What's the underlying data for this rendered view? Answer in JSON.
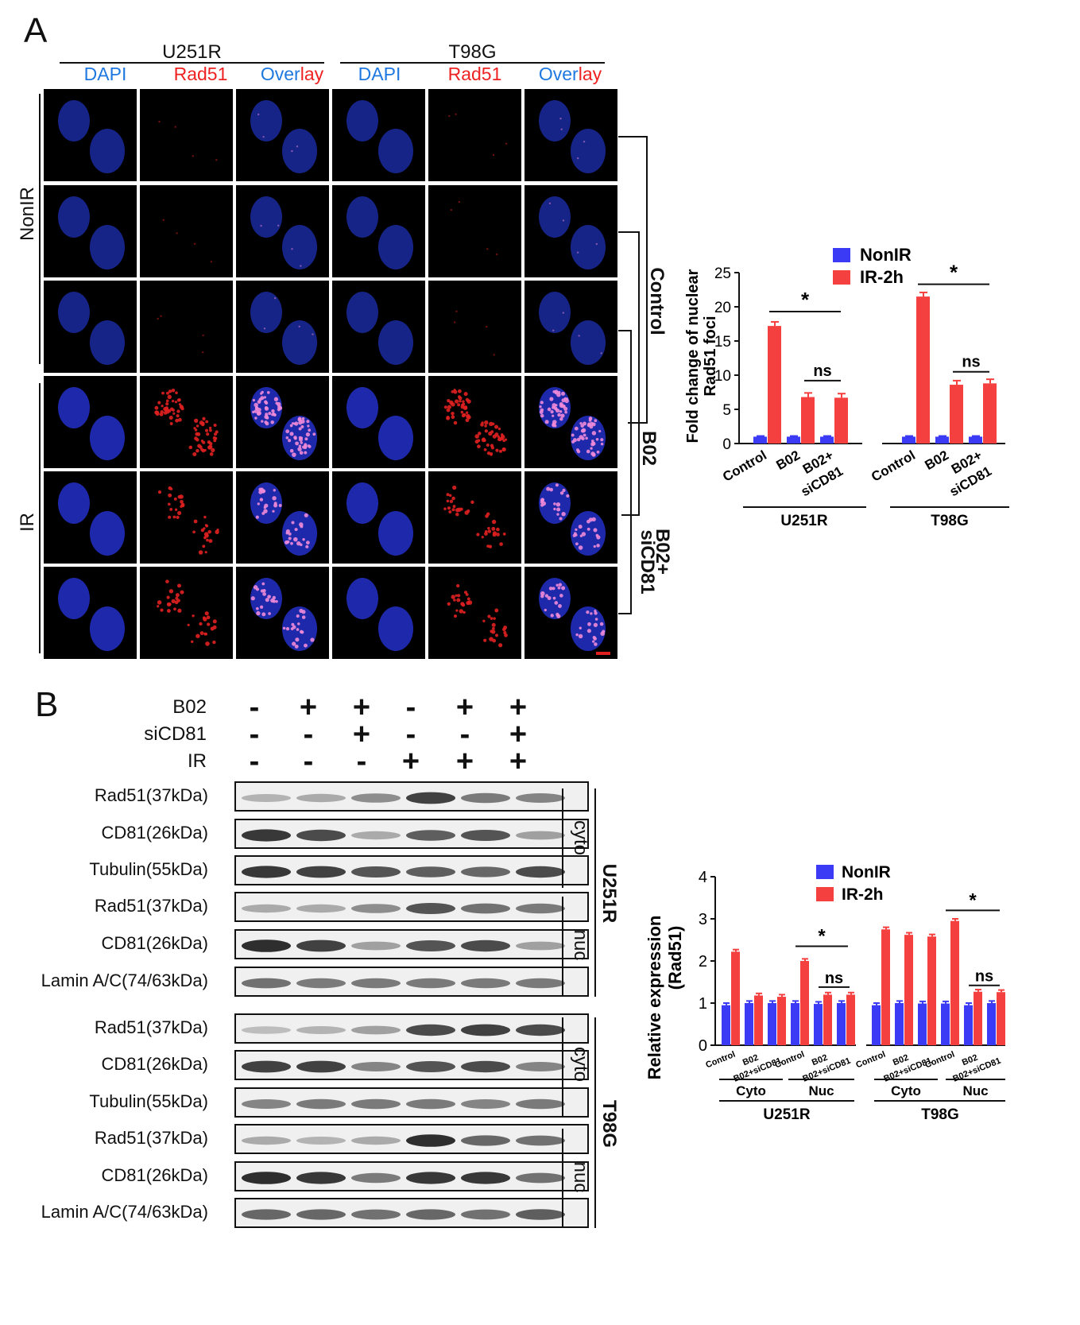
{
  "panel_a": {
    "letter": "A",
    "cell_lines": [
      "U251R",
      "T98G"
    ],
    "channels": [
      {
        "label": "DAPI",
        "color": "#1e78e0"
      },
      {
        "label": "Rad51",
        "color": "#ee2222"
      },
      {
        "label": "Over",
        "label2": "lay",
        "color": "#1e78e0",
        "color2": "#ee2222"
      },
      {
        "label": "DAPI",
        "color": "#1e78e0"
      },
      {
        "label": "Rad51",
        "color": "#ee2222"
      },
      {
        "label": "Over",
        "label2": "lay",
        "color": "#1e78e0",
        "color2": "#ee2222"
      }
    ],
    "row_groups": [
      "NonIR",
      "IR"
    ],
    "treatments": [
      "Control",
      "B02",
      "B02+\nsiCD81"
    ],
    "treatment_labels": {
      "control": "Control",
      "b02": "B02",
      "b02_si_line1": "B02+",
      "b02_si_line2": "siCD81"
    }
  },
  "chart_a": {
    "type": "bar",
    "ylabel_line1": "Fold change of nuclear",
    "ylabel_line2": "Rad51 foci",
    "ylim": [
      0,
      25
    ],
    "yticks": [
      "0",
      "5",
      "10",
      "15",
      "20",
      "25"
    ],
    "legend": [
      "NonIR",
      "IR-2h"
    ],
    "colors": [
      "#3b3bf5",
      "#f54040"
    ],
    "categories": [
      "Control",
      "B02",
      "B02+\nsiCD81",
      "Control",
      "B02",
      "B02+\nsiCD81"
    ],
    "groups": [
      "U251R",
      "T98G"
    ],
    "series": [
      {
        "name": "NonIR",
        "values": [
          1.0,
          1.0,
          1.0,
          1.0,
          1.0,
          1.0
        ]
      },
      {
        "name": "IR-2h",
        "values": [
          17.2,
          6.8,
          6.7,
          21.5,
          8.6,
          8.8
        ]
      }
    ],
    "significance": [
      "*",
      "ns",
      "*",
      "ns"
    ]
  },
  "panel_b": {
    "letter": "B",
    "conditions": [
      {
        "name": "B02",
        "signs": [
          "-",
          "+",
          "+",
          "-",
          "+",
          "+"
        ]
      },
      {
        "name": "siCD81",
        "signs": [
          "-",
          "-",
          "+",
          "-",
          "-",
          "+"
        ]
      },
      {
        "name": "IR",
        "signs": [
          "-",
          "-",
          "-",
          "+",
          "+",
          "+"
        ]
      }
    ],
    "blots": [
      "Rad51(37kDa)",
      "CD81(26kDa)",
      "Tubulin(55kDa)",
      "Rad51(37kDa)",
      "CD81(26kDa)",
      "Lamin A/C(74/63kDa)",
      "Rad51(37kDa)",
      "CD81(26kDa)",
      "Tubulin(55kDa)",
      "Rad51(37kDa)",
      "CD81(26kDa)",
      "Lamin A/C(74/63kDa)"
    ],
    "fractions": [
      "cyto",
      "nuc",
      "cyto",
      "nuc"
    ],
    "cell_lines": [
      "U251R",
      "T98G"
    ]
  },
  "chart_b": {
    "type": "bar",
    "ylabel_line1": "Relative expression",
    "ylabel_line2": "(Rad51)",
    "ylim": [
      0,
      4
    ],
    "yticks": [
      "0",
      "1",
      "2",
      "3",
      "4"
    ],
    "legend": [
      "NonIR",
      "IR-2h"
    ],
    "colors": [
      "#3b3bf5",
      "#f54040"
    ],
    "categories": [
      "Control",
      "B02",
      "B02+siCD81",
      "Control",
      "B02",
      "B02+siCD81",
      "Control",
      "B02",
      "B02+siCD81",
      "Control",
      "B02",
      "B02+siCD81"
    ],
    "fractions": [
      "Cyto",
      "Nuc",
      "Cyto",
      "Nuc"
    ],
    "groups": [
      "U251R",
      "T98G"
    ],
    "series": [
      {
        "name": "NonIR",
        "values": [
          0.95,
          1.0,
          1.0,
          1.0,
          0.98,
          1.0,
          0.95,
          1.0,
          0.99,
          0.99,
          0.95,
          1.0
        ]
      },
      {
        "name": "IR-2h",
        "values": [
          2.22,
          1.18,
          1.15,
          2.0,
          1.2,
          1.2,
          2.75,
          2.62,
          2.58,
          2.95,
          1.27,
          1.26
        ]
      }
    ],
    "significance": [
      "*",
      "ns",
      "*",
      "ns"
    ]
  }
}
